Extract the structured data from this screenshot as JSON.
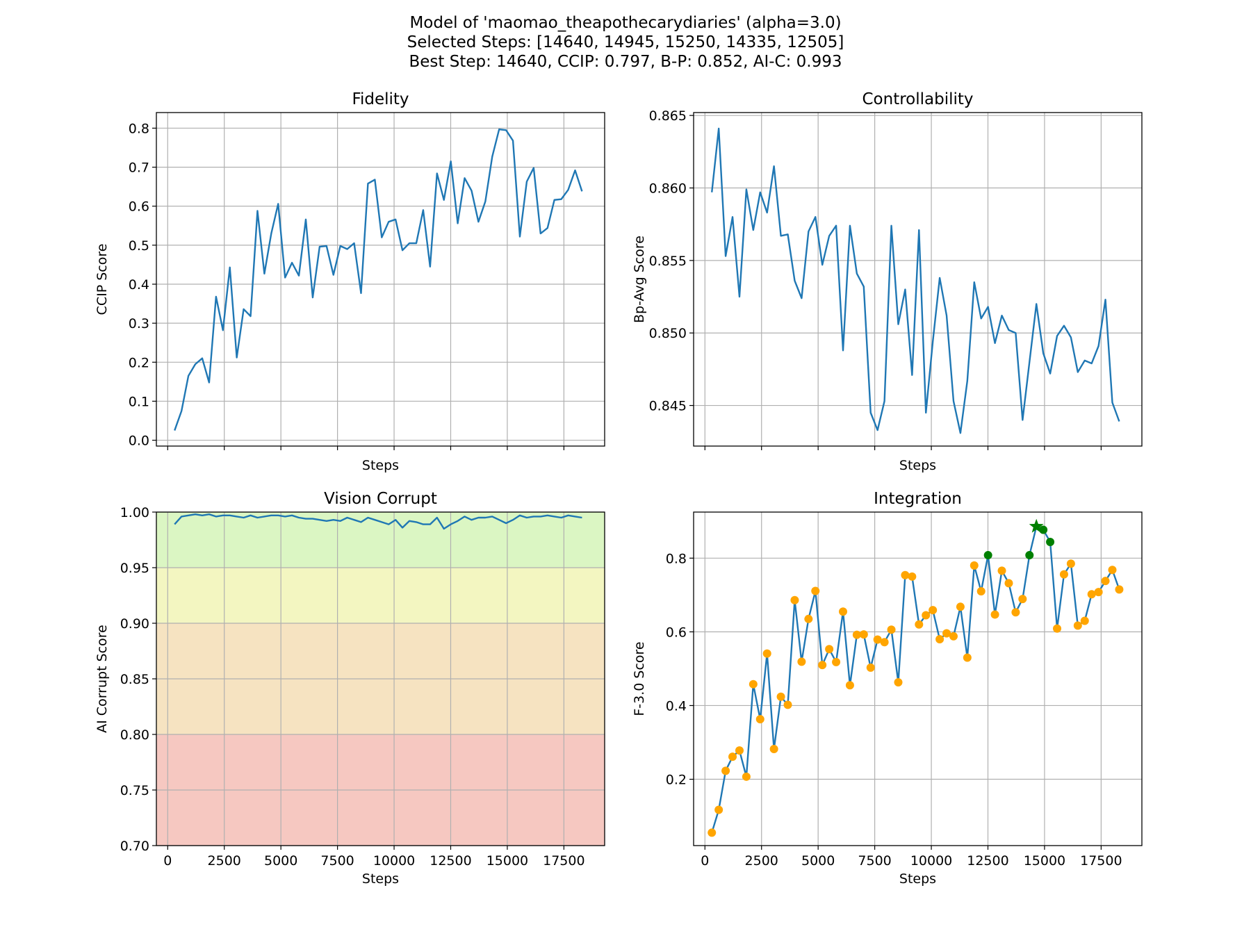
{
  "figure": {
    "suptitle": [
      "Model of 'maomao_theapothecarydiaries' (alpha=3.0)",
      "Selected Steps: [14640, 14945, 15250, 14335, 12505]",
      "Best Step: 14640, CCIP: 0.797, B-P: 0.852, AI-C: 0.993"
    ]
  },
  "chart_data": [
    {
      "id": "fidelity",
      "type": "line",
      "title": "Fidelity",
      "xlabel": "Steps",
      "ylabel": "CCIP Score",
      "xlim": [
        -500,
        19300
      ],
      "ylim": [
        -0.015,
        0.84
      ],
      "yticks": [
        0.0,
        0.1,
        0.2,
        0.3,
        0.4,
        0.5,
        0.6,
        0.7,
        0.8
      ],
      "ytick_labels": [
        "0.0",
        "0.1",
        "0.2",
        "0.3",
        "0.4",
        "0.5",
        "0.6",
        "0.7",
        "0.8"
      ],
      "xticks": [
        0,
        2500,
        5000,
        7500,
        10000,
        12500,
        15000,
        17500
      ],
      "show_xtick_labels": false,
      "grid": true,
      "line_color": "#1f77b4",
      "x": [
        305,
        610,
        915,
        1220,
        1525,
        1830,
        2135,
        2440,
        2745,
        3050,
        3355,
        3660,
        3965,
        4270,
        4575,
        4880,
        5185,
        5490,
        5795,
        6100,
        6405,
        6710,
        7015,
        7320,
        7625,
        7930,
        8235,
        8540,
        8845,
        9150,
        9455,
        9760,
        10065,
        10370,
        10675,
        10980,
        11285,
        11590,
        11895,
        12200,
        12505,
        12810,
        13115,
        13420,
        13725,
        14030,
        14335,
        14640,
        14945,
        15250,
        15555,
        15860,
        16165,
        16470,
        16775,
        17080,
        17385,
        17690,
        17995,
        18300
      ],
      "y": [
        0.025,
        0.075,
        0.165,
        0.195,
        0.21,
        0.148,
        0.368,
        0.282,
        0.443,
        0.212,
        0.336,
        0.318,
        0.588,
        0.427,
        0.53,
        0.606,
        0.417,
        0.455,
        0.422,
        0.566,
        0.366,
        0.496,
        0.498,
        0.424,
        0.498,
        0.49,
        0.505,
        0.377,
        0.658,
        0.668,
        0.52,
        0.56,
        0.566,
        0.487,
        0.505,
        0.505,
        0.59,
        0.445,
        0.684,
        0.616,
        0.715,
        0.556,
        0.672,
        0.64,
        0.56,
        0.612,
        0.727,
        0.797,
        0.795,
        0.768,
        0.522,
        0.663,
        0.698,
        0.53,
        0.544,
        0.616,
        0.618,
        0.642,
        0.692,
        0.638
      ]
    },
    {
      "id": "controllability",
      "type": "line",
      "title": "Controllability",
      "xlabel": "Steps",
      "ylabel": "Bp-Avg Score",
      "xlim": [
        -500,
        19300
      ],
      "ylim": [
        0.8422,
        0.8652
      ],
      "yticks": [
        0.845,
        0.85,
        0.855,
        0.86,
        0.865
      ],
      "ytick_labels": [
        "0.845",
        "0.850",
        "0.855",
        "0.860",
        "0.865"
      ],
      "xticks": [
        0,
        2500,
        5000,
        7500,
        10000,
        12500,
        15000,
        17500
      ],
      "show_xtick_labels": false,
      "grid": true,
      "line_color": "#1f77b4",
      "x": [
        305,
        610,
        915,
        1220,
        1525,
        1830,
        2135,
        2440,
        2745,
        3050,
        3355,
        3660,
        3965,
        4270,
        4575,
        4880,
        5185,
        5490,
        5795,
        6100,
        6405,
        6710,
        7015,
        7320,
        7625,
        7930,
        8235,
        8540,
        8845,
        9150,
        9455,
        9760,
        10065,
        10370,
        10675,
        10980,
        11285,
        11590,
        11895,
        12200,
        12505,
        12810,
        13115,
        13420,
        13725,
        14030,
        14335,
        14640,
        14945,
        15250,
        15555,
        15860,
        16165,
        16470,
        16775,
        17080,
        17385,
        17690,
        17995,
        18300
      ],
      "y": [
        0.8597,
        0.8641,
        0.8553,
        0.858,
        0.8525,
        0.8599,
        0.8571,
        0.8597,
        0.8583,
        0.8615,
        0.8567,
        0.8568,
        0.8536,
        0.8524,
        0.857,
        0.858,
        0.8547,
        0.8567,
        0.8574,
        0.8488,
        0.8574,
        0.8541,
        0.8532,
        0.8445,
        0.8433,
        0.8453,
        0.8574,
        0.8506,
        0.853,
        0.8471,
        0.8571,
        0.8445,
        0.8494,
        0.8538,
        0.8512,
        0.8453,
        0.8431,
        0.8467,
        0.8535,
        0.851,
        0.8518,
        0.8493,
        0.8512,
        0.8502,
        0.85,
        0.844,
        0.848,
        0.852,
        0.8486,
        0.8472,
        0.8498,
        0.8505,
        0.8497,
        0.8473,
        0.8481,
        0.8479,
        0.8491,
        0.8523,
        0.8452,
        0.8439
      ]
    },
    {
      "id": "vision-corrupt",
      "type": "line",
      "title": "Vision Corrupt",
      "xlabel": "Steps",
      "ylabel": "AI Corrupt Score",
      "xlim": [
        -500,
        19300
      ],
      "ylim": [
        0.7,
        1.0
      ],
      "yticks": [
        0.7,
        0.75,
        0.8,
        0.85,
        0.9,
        0.95,
        1.0
      ],
      "ytick_labels": [
        "0.70",
        "0.75",
        "0.80",
        "0.85",
        "0.90",
        "0.95",
        "1.00"
      ],
      "xticks": [
        0,
        2500,
        5000,
        7500,
        10000,
        12500,
        15000,
        17500
      ],
      "xtick_labels": [
        "0",
        "2500",
        "5000",
        "7500",
        "10000",
        "12500",
        "15000",
        "17500"
      ],
      "show_xtick_labels": true,
      "grid": true,
      "line_color": "#1f77b4",
      "bands": [
        {
          "from": 0.95,
          "to": 1.0,
          "color": "#dbf6c3"
        },
        {
          "from": 0.9,
          "to": 0.95,
          "color": "#f3f6c1"
        },
        {
          "from": 0.8,
          "to": 0.9,
          "color": "#f6e3c1"
        },
        {
          "from": 0.7,
          "to": 0.8,
          "color": "#f6c8c1"
        }
      ],
      "x": [
        305,
        610,
        915,
        1220,
        1525,
        1830,
        2135,
        2440,
        2745,
        3050,
        3355,
        3660,
        3965,
        4270,
        4575,
        4880,
        5185,
        5490,
        5795,
        6100,
        6405,
        6710,
        7015,
        7320,
        7625,
        7930,
        8235,
        8540,
        8845,
        9150,
        9455,
        9760,
        10065,
        10370,
        10675,
        10980,
        11285,
        11590,
        11895,
        12200,
        12505,
        12810,
        13115,
        13420,
        13725,
        14030,
        14335,
        14640,
        14945,
        15250,
        15555,
        15860,
        16165,
        16470,
        16775,
        17080,
        17385,
        17690,
        17995,
        18300
      ],
      "y": [
        0.989,
        0.996,
        0.997,
        0.998,
        0.997,
        0.998,
        0.996,
        0.997,
        0.997,
        0.996,
        0.995,
        0.997,
        0.995,
        0.996,
        0.997,
        0.997,
        0.996,
        0.997,
        0.995,
        0.994,
        0.994,
        0.993,
        0.992,
        0.993,
        0.992,
        0.995,
        0.993,
        0.991,
        0.995,
        0.993,
        0.991,
        0.989,
        0.993,
        0.986,
        0.992,
        0.991,
        0.989,
        0.989,
        0.995,
        0.985,
        0.989,
        0.992,
        0.996,
        0.993,
        0.995,
        0.995,
        0.996,
        0.993,
        0.99,
        0.993,
        0.997,
        0.995,
        0.996,
        0.996,
        0.997,
        0.996,
        0.995,
        0.997,
        0.996,
        0.995
      ]
    },
    {
      "id": "integration",
      "type": "line",
      "title": "Integration",
      "xlabel": "Steps",
      "ylabel": "F-3.0 Score",
      "xlim": [
        -500,
        19300
      ],
      "ylim": [
        0.02,
        0.925
      ],
      "yticks": [
        0.2,
        0.4,
        0.6,
        0.8
      ],
      "ytick_labels": [
        "0.2",
        "0.4",
        "0.6",
        "0.8"
      ],
      "xticks": [
        0,
        2500,
        5000,
        7500,
        10000,
        12500,
        15000,
        17500
      ],
      "xtick_labels": [
        "0",
        "2500",
        "5000",
        "7500",
        "10000",
        "12500",
        "15000",
        "17500"
      ],
      "show_xtick_labels": true,
      "grid": true,
      "line_color": "#1f77b4",
      "point_color": "#ffa500",
      "selected_color": "#008000",
      "selected_steps": [
        14640,
        14945,
        15250,
        14335,
        12505
      ],
      "best_step": 14640,
      "x": [
        305,
        610,
        915,
        1220,
        1525,
        1830,
        2135,
        2440,
        2745,
        3050,
        3355,
        3660,
        3965,
        4270,
        4575,
        4880,
        5185,
        5490,
        5795,
        6100,
        6405,
        6710,
        7015,
        7320,
        7625,
        7930,
        8235,
        8540,
        8845,
        9150,
        9455,
        9760,
        10065,
        10370,
        10675,
        10980,
        11285,
        11590,
        11895,
        12200,
        12505,
        12810,
        13115,
        13420,
        13725,
        14030,
        14335,
        14640,
        14945,
        15250,
        15555,
        15860,
        16165,
        16470,
        16775,
        17080,
        17385,
        17690,
        17995,
        18300
      ],
      "y": [
        0.055,
        0.117,
        0.223,
        0.261,
        0.278,
        0.207,
        0.458,
        0.363,
        0.541,
        0.282,
        0.424,
        0.402,
        0.686,
        0.519,
        0.635,
        0.711,
        0.51,
        0.553,
        0.518,
        0.655,
        0.455,
        0.592,
        0.593,
        0.503,
        0.579,
        0.572,
        0.606,
        0.463,
        0.754,
        0.75,
        0.62,
        0.645,
        0.659,
        0.58,
        0.596,
        0.588,
        0.668,
        0.53,
        0.78,
        0.71,
        0.808,
        0.647,
        0.766,
        0.732,
        0.653,
        0.689,
        0.808,
        0.886,
        0.877,
        0.844,
        0.609,
        0.756,
        0.785,
        0.617,
        0.63,
        0.702,
        0.708,
        0.738,
        0.768,
        0.715
      ]
    }
  ]
}
